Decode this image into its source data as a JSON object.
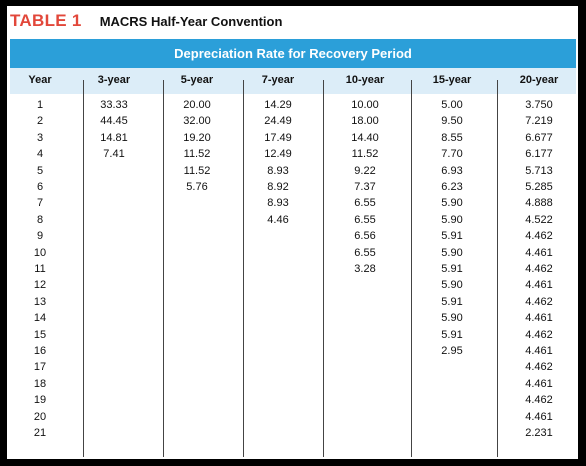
{
  "table": {
    "number": "TABLE 1",
    "name": "MACRS Half-Year Convention",
    "banner": "Depreciation Rate for Recovery Period",
    "columns": [
      "Year",
      "3-year",
      "5-year",
      "7-year",
      "10-year",
      "15-year",
      "20-year"
    ],
    "rows": [
      [
        "1",
        "33.33",
        "20.00",
        "14.29",
        "10.00",
        "5.00",
        "3.750"
      ],
      [
        "2",
        "44.45",
        "32.00",
        "24.49",
        "18.00",
        "9.50",
        "7.219"
      ],
      [
        "3",
        "14.81",
        "19.20",
        "17.49",
        "14.40",
        "8.55",
        "6.677"
      ],
      [
        "4",
        "7.41",
        "11.52",
        "12.49",
        "11.52",
        "7.70",
        "6.177"
      ],
      [
        "5",
        "",
        "11.52",
        "8.93",
        "9.22",
        "6.93",
        "5.713"
      ],
      [
        "6",
        "",
        "5.76",
        "8.92",
        "7.37",
        "6.23",
        "5.285"
      ],
      [
        "7",
        "",
        "",
        "8.93",
        "6.55",
        "5.90",
        "4.888"
      ],
      [
        "8",
        "",
        "",
        "4.46",
        "6.55",
        "5.90",
        "4.522"
      ],
      [
        "9",
        "",
        "",
        "",
        "6.56",
        "5.91",
        "4.462"
      ],
      [
        "10",
        "",
        "",
        "",
        "6.55",
        "5.90",
        "4.461"
      ],
      [
        "11",
        "",
        "",
        "",
        "3.28",
        "5.91",
        "4.462"
      ],
      [
        "12",
        "",
        "",
        "",
        "",
        "5.90",
        "4.461"
      ],
      [
        "13",
        "",
        "",
        "",
        "",
        "5.91",
        "4.462"
      ],
      [
        "14",
        "",
        "",
        "",
        "",
        "5.90",
        "4.461"
      ],
      [
        "15",
        "",
        "",
        "",
        "",
        "5.91",
        "4.462"
      ],
      [
        "16",
        "",
        "",
        "",
        "",
        "2.95",
        "4.461"
      ],
      [
        "17",
        "",
        "",
        "",
        "",
        "",
        "4.462"
      ],
      [
        "18",
        "",
        "",
        "",
        "",
        "",
        "4.461"
      ],
      [
        "19",
        "",
        "",
        "",
        "",
        "",
        "4.462"
      ],
      [
        "20",
        "",
        "",
        "",
        "",
        "",
        "4.461"
      ],
      [
        "21",
        "",
        "",
        "",
        "",
        "",
        "2.231"
      ]
    ],
    "colors": {
      "title_accent": "#e2473a",
      "banner_bg": "#2b9fd9",
      "header_bg": "#dcedf8"
    }
  }
}
